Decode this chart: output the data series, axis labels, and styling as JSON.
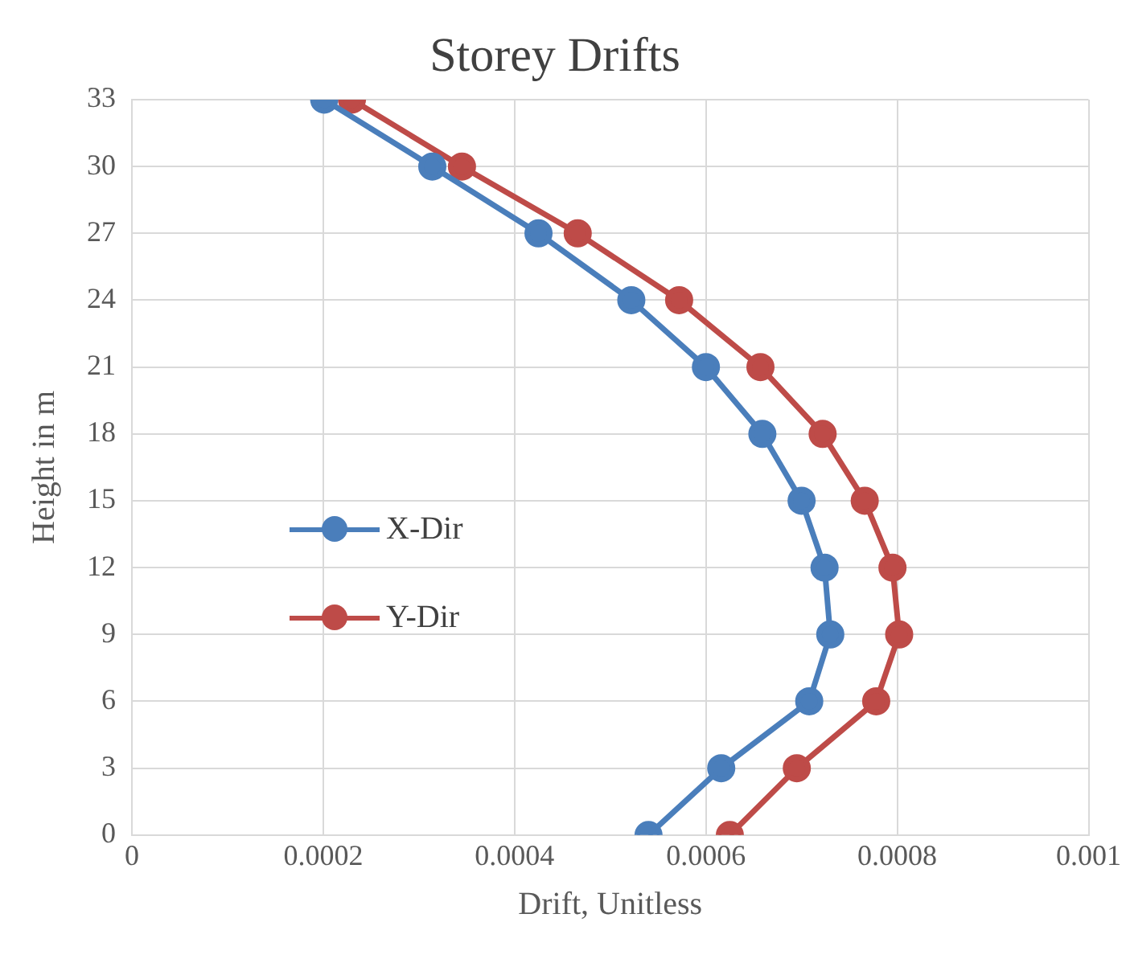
{
  "chart_data": {
    "type": "line",
    "title": "Storey Drifts",
    "xlabel": "Drift, Unitless",
    "ylabel": "Height in m",
    "xlim": [
      0,
      0.001
    ],
    "xticks": [
      0,
      0.0002,
      0.0004,
      0.0006,
      0.0008,
      0.001
    ],
    "ylim": [
      0,
      33
    ],
    "yticks": [
      0,
      3,
      6,
      9,
      12,
      15,
      18,
      21,
      24,
      27,
      30,
      33
    ],
    "grid": true,
    "legend": "left",
    "marker": "circle",
    "line_style": "solid",
    "series": [
      {
        "name": "X-Dir",
        "color": "#4a7ebb",
        "x": [
          0.00054,
          0.000616,
          0.000708,
          0.00073,
          0.000724,
          0.0007,
          0.000659,
          0.0006,
          0.000522,
          0.000425,
          0.000314,
          0.000201
        ],
        "values": [
          0,
          3,
          6,
          9,
          12,
          15,
          18,
          21,
          24,
          27,
          30,
          33
        ]
      },
      {
        "name": "Y-Dir",
        "color": "#be4b48",
        "x": [
          0.000625,
          0.000695,
          0.000778,
          0.000802,
          0.000795,
          0.000766,
          0.000722,
          0.000657,
          0.000572,
          0.000466,
          0.000345,
          0.00023
        ],
        "values": [
          0,
          3,
          6,
          9,
          12,
          15,
          18,
          21,
          24,
          27,
          30,
          33
        ]
      }
    ]
  }
}
